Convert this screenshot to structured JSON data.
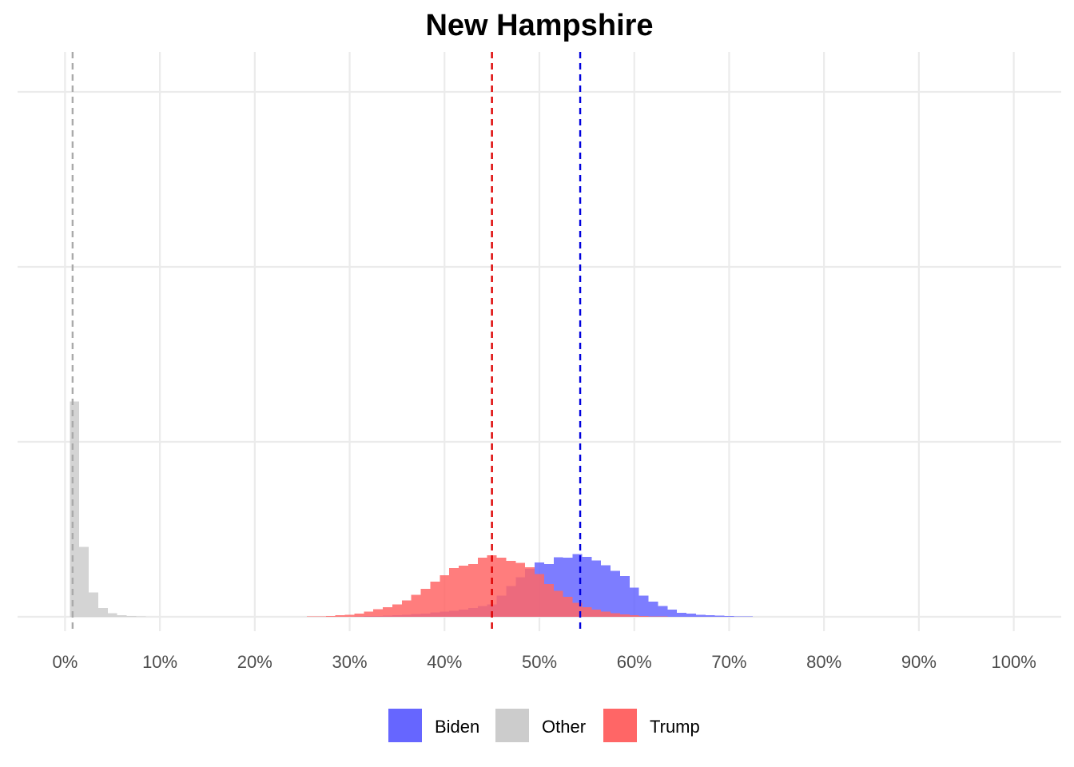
{
  "chart_data": {
    "type": "bar",
    "title": "New Hampshire",
    "xlabel": "",
    "ylabel": "",
    "xlim": [
      -0.05,
      1.05
    ],
    "ylim": [
      0,
      0.67
    ],
    "x_ticks": [
      0,
      0.1,
      0.2,
      0.3,
      0.4,
      0.5,
      0.6,
      0.7,
      0.8,
      0.9,
      1.0
    ],
    "x_tick_labels": [
      "0%",
      "10%",
      "20%",
      "30%",
      "40%",
      "50%",
      "60%",
      "70%",
      "80%",
      "90%",
      "100%"
    ],
    "y_gridlines": [
      0,
      0.2,
      0.4,
      0.6
    ],
    "y_tick_labels_shown": false,
    "grid": true,
    "legend_position": "bottom",
    "bin_width": 0.01,
    "series": [
      {
        "name": "Biden",
        "color": "#6666ff",
        "mean_line": 0.543,
        "mean_line_color": "#0000dd",
        "bins": [
          [
            0.31,
            0.0004
          ],
          [
            0.32,
            0.0007
          ],
          [
            0.33,
            0.001
          ],
          [
            0.34,
            0.0014
          ],
          [
            0.35,
            0.0018
          ],
          [
            0.36,
            0.0024
          ],
          [
            0.37,
            0.003
          ],
          [
            0.38,
            0.0037
          ],
          [
            0.39,
            0.0048
          ],
          [
            0.4,
            0.006
          ],
          [
            0.41,
            0.007
          ],
          [
            0.42,
            0.0084
          ],
          [
            0.43,
            0.01
          ],
          [
            0.44,
            0.0124
          ],
          [
            0.45,
            0.014
          ],
          [
            0.46,
            0.024
          ],
          [
            0.47,
            0.035
          ],
          [
            0.48,
            0.045
          ],
          [
            0.49,
            0.055
          ],
          [
            0.5,
            0.062
          ],
          [
            0.51,
            0.0605
          ],
          [
            0.52,
            0.068
          ],
          [
            0.53,
            0.0675
          ],
          [
            0.54,
            0.0715
          ],
          [
            0.55,
            0.0685
          ],
          [
            0.56,
            0.0645
          ],
          [
            0.57,
            0.059
          ],
          [
            0.58,
            0.0525
          ],
          [
            0.59,
            0.0465
          ],
          [
            0.6,
            0.0335
          ],
          [
            0.61,
            0.024
          ],
          [
            0.62,
            0.0175
          ],
          [
            0.63,
            0.0125
          ],
          [
            0.64,
            0.008
          ],
          [
            0.65,
            0.0045
          ],
          [
            0.66,
            0.0035
          ],
          [
            0.67,
            0.0025
          ],
          [
            0.68,
            0.0018
          ],
          [
            0.69,
            0.0013
          ],
          [
            0.7,
            0.0008
          ],
          [
            0.71,
            0.0005
          ],
          [
            0.72,
            0.0003
          ],
          [
            0.73,
            0.0002
          ],
          [
            0.74,
            0.0001
          ]
        ]
      },
      {
        "name": "Other",
        "color": "#cccccc",
        "mean_line": 0.008,
        "mean_line_color": "#aaaaaa",
        "bins": [
          [
            0.0,
            0.0
          ],
          [
            0.01,
            0.246
          ],
          [
            0.02,
            0.08
          ],
          [
            0.03,
            0.028
          ],
          [
            0.04,
            0.01
          ],
          [
            0.05,
            0.004
          ],
          [
            0.06,
            0.002
          ],
          [
            0.07,
            0.001
          ],
          [
            0.08,
            0.0005
          ]
        ]
      },
      {
        "name": "Trump",
        "color": "#ff6666",
        "mean_line": 0.45,
        "mean_line_color": "#dd0000",
        "bins": [
          [
            0.26,
            0.0003
          ],
          [
            0.27,
            0.0006
          ],
          [
            0.28,
            0.001
          ],
          [
            0.29,
            0.0016
          ],
          [
            0.3,
            0.0025
          ],
          [
            0.31,
            0.0038
          ],
          [
            0.32,
            0.006
          ],
          [
            0.33,
            0.0085
          ],
          [
            0.34,
            0.011
          ],
          [
            0.35,
            0.014
          ],
          [
            0.36,
            0.0185
          ],
          [
            0.37,
            0.025
          ],
          [
            0.38,
            0.032
          ],
          [
            0.39,
            0.04
          ],
          [
            0.4,
            0.0475
          ],
          [
            0.41,
            0.0555
          ],
          [
            0.42,
            0.0585
          ],
          [
            0.43,
            0.0605
          ],
          [
            0.44,
            0.0675
          ],
          [
            0.45,
            0.0705
          ],
          [
            0.46,
            0.0675
          ],
          [
            0.47,
            0.064
          ],
          [
            0.48,
            0.0615
          ],
          [
            0.49,
            0.0565
          ],
          [
            0.5,
            0.049
          ],
          [
            0.51,
            0.0375
          ],
          [
            0.52,
            0.0295
          ],
          [
            0.53,
            0.023
          ],
          [
            0.54,
            0.016
          ],
          [
            0.55,
            0.011
          ],
          [
            0.56,
            0.008
          ],
          [
            0.57,
            0.0058
          ],
          [
            0.58,
            0.004
          ],
          [
            0.59,
            0.0028
          ],
          [
            0.6,
            0.0018
          ],
          [
            0.61,
            0.001
          ],
          [
            0.62,
            0.0006
          ],
          [
            0.63,
            0.0003
          ]
        ]
      }
    ]
  }
}
